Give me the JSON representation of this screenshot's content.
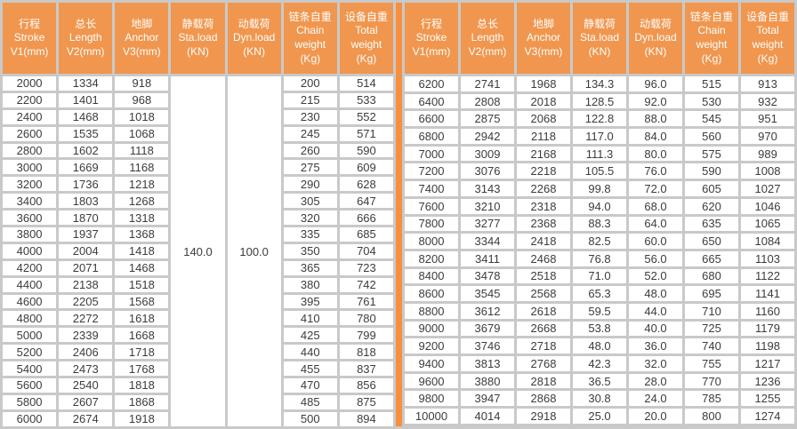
{
  "colors": {
    "header_bg": "#F0964E",
    "divider": "#F78F3F",
    "grid": "#C9C9C9",
    "cell_bg": "#FFFFFF",
    "header_text": "#FFFFFF",
    "cell_text": "#3C3C3C"
  },
  "columns": [
    {
      "key": "stroke",
      "zh": "行程",
      "en": "Stroke",
      "unit": "V1(mm)"
    },
    {
      "key": "length",
      "zh": "总长",
      "en": "Length",
      "unit": "V2(mm)"
    },
    {
      "key": "anchor",
      "zh": "地脚",
      "en": "Anchor",
      "unit": "V3(mm)"
    },
    {
      "key": "sta-load",
      "zh": "静载荷",
      "en": "Sta.load",
      "unit": "(KN)"
    },
    {
      "key": "dyn-load",
      "zh": "动载荷",
      "en": "Dyn.load",
      "unit": "(KN)"
    },
    {
      "key": "chain-weight",
      "zh": "链条自重",
      "en": "Chain",
      "en2": "weight",
      "unit": "(Kg)"
    },
    {
      "key": "total-weight",
      "zh": "设备自重",
      "en": "Total",
      "en2": "weight",
      "unit": "(Kg)"
    }
  ],
  "left_table": {
    "header_keys": [
      "stroke",
      "length",
      "anchor",
      "sta-load",
      "dyn-load",
      "chain-weight",
      "total-weight"
    ],
    "column_keys": [
      "stroke",
      "length",
      "anchor",
      "chain-weight",
      "total-weight"
    ],
    "merged_cells": [
      {
        "insert_at": 3,
        "key": "sta-load",
        "value": "140.0"
      },
      {
        "insert_at": 4,
        "key": "dyn-load",
        "value": "100.0"
      }
    ],
    "rows": [
      [
        "2000",
        "1334",
        "918",
        "200",
        "514"
      ],
      [
        "2200",
        "1401",
        "968",
        "215",
        "533"
      ],
      [
        "2400",
        "1468",
        "1018",
        "230",
        "552"
      ],
      [
        "2600",
        "1535",
        "1068",
        "245",
        "571"
      ],
      [
        "2800",
        "1602",
        "1118",
        "260",
        "590"
      ],
      [
        "3000",
        "1669",
        "1168",
        "275",
        "609"
      ],
      [
        "3200",
        "1736",
        "1218",
        "290",
        "628"
      ],
      [
        "3400",
        "1803",
        "1268",
        "305",
        "647"
      ],
      [
        "3600",
        "1870",
        "1318",
        "320",
        "666"
      ],
      [
        "3800",
        "1937",
        "1368",
        "335",
        "685"
      ],
      [
        "4000",
        "2004",
        "1418",
        "350",
        "704"
      ],
      [
        "4200",
        "2071",
        "1468",
        "365",
        "723"
      ],
      [
        "4400",
        "2138",
        "1518",
        "380",
        "742"
      ],
      [
        "4600",
        "2205",
        "1568",
        "395",
        "761"
      ],
      [
        "4800",
        "2272",
        "1618",
        "410",
        "780"
      ],
      [
        "5000",
        "2339",
        "1668",
        "425",
        "799"
      ],
      [
        "5200",
        "2406",
        "1718",
        "440",
        "818"
      ],
      [
        "5400",
        "2473",
        "1768",
        "455",
        "837"
      ],
      [
        "5600",
        "2540",
        "1818",
        "470",
        "856"
      ],
      [
        "5800",
        "2607",
        "1868",
        "485",
        "875"
      ],
      [
        "6000",
        "2674",
        "1918",
        "500",
        "894"
      ]
    ]
  },
  "right_table": {
    "header_keys": [
      "stroke",
      "length",
      "anchor",
      "sta-load",
      "dyn-load",
      "chain-weight",
      "total-weight"
    ],
    "column_keys": [
      "stroke",
      "length",
      "anchor",
      "sta-load",
      "dyn-load",
      "chain-weight",
      "total-weight"
    ],
    "rows": [
      [
        "6200",
        "2741",
        "1968",
        "134.3",
        "96.0",
        "515",
        "913"
      ],
      [
        "6400",
        "2808",
        "2018",
        "128.5",
        "92.0",
        "530",
        "932"
      ],
      [
        "6600",
        "2875",
        "2068",
        "122.8",
        "88.0",
        "545",
        "951"
      ],
      [
        "6800",
        "2942",
        "2118",
        "117.0",
        "84.0",
        "560",
        "970"
      ],
      [
        "7000",
        "3009",
        "2168",
        "111.3",
        "80.0",
        "575",
        "989"
      ],
      [
        "7200",
        "3076",
        "2218",
        "105.5",
        "76.0",
        "590",
        "1008"
      ],
      [
        "7400",
        "3143",
        "2268",
        "99.8",
        "72.0",
        "605",
        "1027"
      ],
      [
        "7600",
        "3210",
        "2318",
        "94.0",
        "68.0",
        "620",
        "1046"
      ],
      [
        "7800",
        "3277",
        "2368",
        "88.3",
        "64.0",
        "635",
        "1065"
      ],
      [
        "8000",
        "3344",
        "2418",
        "82.5",
        "60.0",
        "650",
        "1084"
      ],
      [
        "8200",
        "3411",
        "2468",
        "76.8",
        "56.0",
        "665",
        "1103"
      ],
      [
        "8400",
        "3478",
        "2518",
        "71.0",
        "52.0",
        "680",
        "1122"
      ],
      [
        "8600",
        "3545",
        "2568",
        "65.3",
        "48.0",
        "695",
        "1141"
      ],
      [
        "8800",
        "3612",
        "2618",
        "59.5",
        "44.0",
        "710",
        "1160"
      ],
      [
        "9000",
        "3679",
        "2668",
        "53.8",
        "40.0",
        "725",
        "1179"
      ],
      [
        "9200",
        "3746",
        "2718",
        "48.0",
        "36.0",
        "740",
        "1198"
      ],
      [
        "9400",
        "3813",
        "2768",
        "42.3",
        "32.0",
        "755",
        "1217"
      ],
      [
        "9600",
        "3880",
        "2818",
        "36.5",
        "28.0",
        "770",
        "1236"
      ],
      [
        "9800",
        "3947",
        "2868",
        "30.8",
        "24.0",
        "785",
        "1255"
      ],
      [
        "10000",
        "4014",
        "2918",
        "25.0",
        "20.0",
        "800",
        "1274"
      ],
      [
        "",
        "",
        "",
        "",
        "",
        "",
        ""
      ]
    ]
  }
}
